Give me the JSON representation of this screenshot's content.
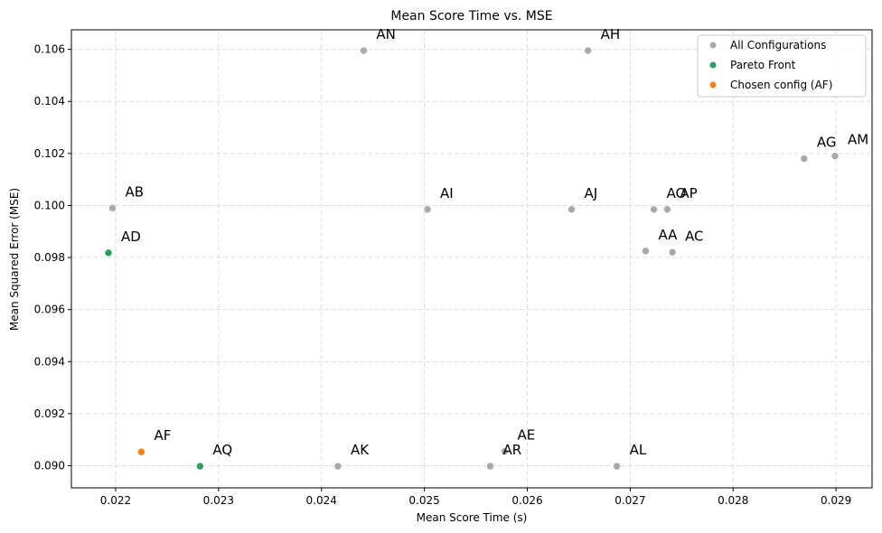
{
  "chart_data": {
    "type": "scatter",
    "title": "Mean Score Time vs. MSE",
    "xlabel": "Mean Score Time (s)",
    "ylabel": "Mean Squared Error (MSE)",
    "xlim": [
      0.02157,
      0.02935
    ],
    "ylim": [
      0.08915,
      0.10675
    ],
    "xticks": [
      0.022,
      0.023,
      0.024,
      0.025,
      0.026,
      0.027,
      0.028,
      0.029
    ],
    "yticks": [
      0.09,
      0.092,
      0.094,
      0.096,
      0.098,
      0.1,
      0.102,
      0.104,
      0.106
    ],
    "grid": true,
    "legend_position": "top-right",
    "series": [
      {
        "name": "All Configurations",
        "color": "#a9a9a9",
        "points": [
          {
            "label": "AN",
            "x": 0.02441,
            "y": 0.10595
          },
          {
            "label": "AH",
            "x": 0.02659,
            "y": 0.10595
          },
          {
            "label": "AG",
            "x": 0.02869,
            "y": 0.1018
          },
          {
            "label": "AM",
            "x": 0.02899,
            "y": 0.1019
          },
          {
            "label": "AB",
            "x": 0.02197,
            "y": 0.0999
          },
          {
            "label": "AI",
            "x": 0.02503,
            "y": 0.09985
          },
          {
            "label": "AJ",
            "x": 0.02643,
            "y": 0.09985
          },
          {
            "label": "AO",
            "x": 0.02723,
            "y": 0.09985
          },
          {
            "label": "AP",
            "x": 0.02736,
            "y": 0.09985
          },
          {
            "label": "AA",
            "x": 0.02715,
            "y": 0.09825
          },
          {
            "label": "AC",
            "x": 0.02741,
            "y": 0.0982
          },
          {
            "label": "AK",
            "x": 0.02416,
            "y": 0.08998
          },
          {
            "label": "AR",
            "x": 0.02564,
            "y": 0.08998
          },
          {
            "label": "AE",
            "x": 0.02578,
            "y": 0.09055
          },
          {
            "label": "AL",
            "x": 0.02687,
            "y": 0.08998
          }
        ]
      },
      {
        "name": "Pareto Front",
        "color": "#2ca05a",
        "points": [
          {
            "label": "AD",
            "x": 0.02193,
            "y": 0.09818
          },
          {
            "label": "AQ",
            "x": 0.02282,
            "y": 0.08998
          }
        ]
      },
      {
        "name": "Chosen config (AF)",
        "color": "#ff7f0e",
        "points": [
          {
            "label": "AF",
            "x": 0.02225,
            "y": 0.09053
          }
        ]
      }
    ]
  }
}
